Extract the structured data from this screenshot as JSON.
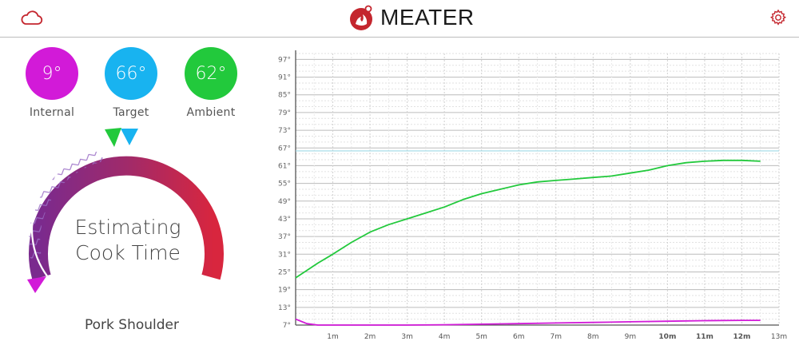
{
  "app": {
    "brand": "MEATER",
    "brand_color": "#c4262e"
  },
  "header": {
    "cloud_icon": "cloud-icon",
    "settings_icon": "gear-icon"
  },
  "temps": [
    {
      "key": "internal",
      "value": "9°",
      "label": "Internal",
      "color": "#d21ad8"
    },
    {
      "key": "target",
      "value": "66°",
      "label": "Target",
      "color": "#18b3f0"
    },
    {
      "key": "ambient",
      "value": "62°",
      "label": "Ambient",
      "color": "#22c93c"
    }
  ],
  "dial": {
    "status_line1": "Estimating",
    "status_line2": "Cook Time",
    "colors": {
      "start": "#7a2a8e",
      "end": "#d8263e"
    }
  },
  "meat": {
    "name": "Pork Shoulder"
  },
  "chart_data": {
    "type": "line",
    "xlabel": "",
    "ylabel": "",
    "x_ticks": [
      "1m",
      "2m",
      "3m",
      "4m",
      "5m",
      "6m",
      "7m",
      "8m",
      "9m",
      "10m",
      "11m",
      "12m",
      "13m"
    ],
    "y_ticks": [
      "7°",
      "13°",
      "19°",
      "25°",
      "31°",
      "37°",
      "43°",
      "49°",
      "55°",
      "61°",
      "67°",
      "73°",
      "79°",
      "85°",
      "91°",
      "97°"
    ],
    "xlim": [
      0,
      13
    ],
    "ylim": [
      7,
      99
    ],
    "grid": true,
    "target_line": {
      "value": 66,
      "color": "#9fd9e6"
    },
    "series": [
      {
        "color": "#22c93c",
        "x": [
          0,
          0.3,
          0.6,
          1,
          1.5,
          2,
          2.5,
          3,
          3.5,
          4,
          4.5,
          5,
          5.5,
          6,
          6.5,
          7,
          7.5,
          8,
          8.5,
          9,
          9.5,
          10,
          10.5,
          11,
          11.5,
          12,
          12.5
        ],
        "y": [
          23,
          25.5,
          28,
          31,
          35,
          38.5,
          41,
          43,
          45,
          47,
          49.5,
          51.5,
          53,
          54.5,
          55.5,
          56,
          56.5,
          57,
          57.5,
          58.5,
          59.5,
          61,
          62,
          62.5,
          62.8,
          62.8,
          62.5
        ]
      },
      {
        "color": "#d21ad8",
        "x": [
          0,
          0.3,
          0.6,
          1,
          2,
          3,
          4,
          5,
          6,
          7,
          8,
          9,
          10,
          11,
          12,
          12.5
        ],
        "y": [
          9,
          7.5,
          7,
          7,
          7,
          7,
          7.1,
          7.3,
          7.5,
          7.7,
          7.9,
          8.1,
          8.3,
          8.5,
          8.6,
          8.6
        ]
      }
    ]
  }
}
